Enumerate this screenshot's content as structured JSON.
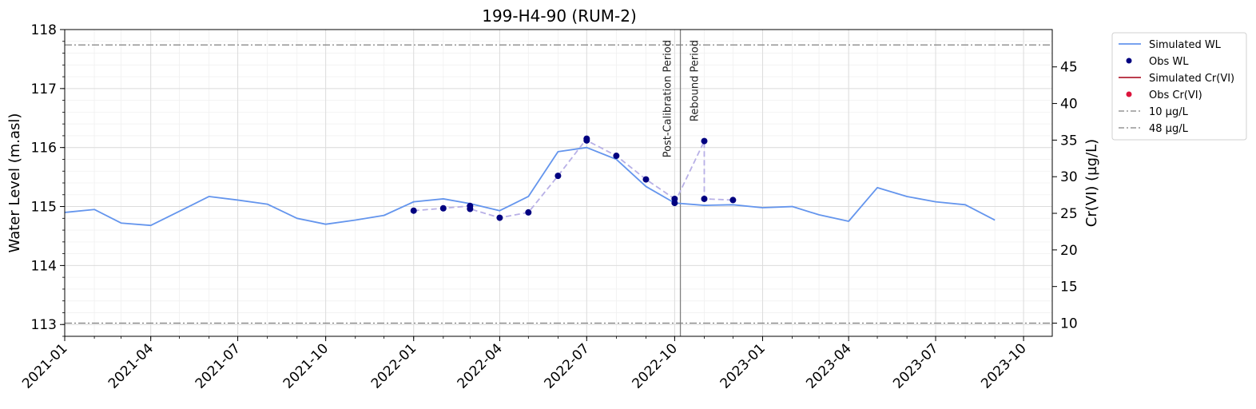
{
  "chart_data": {
    "type": "line",
    "title": "199-H4-90 (RUM-2)",
    "ylabel_left": "Water Level (m.asl)",
    "ylabel_right": "Cr(VI) (µg/L)",
    "xlim": [
      "2021-01-01",
      "2023-10-31"
    ],
    "ylim_left": [
      112.8,
      118.0
    ],
    "ylim_right": [
      8.2,
      50.1
    ],
    "x_ticks": [
      "2021-01",
      "2021-04",
      "2021-07",
      "2021-10",
      "2022-01",
      "2022-04",
      "2022-07",
      "2022-10",
      "2023-01",
      "2023-04",
      "2023-07",
      "2023-10"
    ],
    "y_ticks_left": [
      113,
      114,
      115,
      116,
      117,
      118
    ],
    "y_ticks_right": [
      10,
      15,
      20,
      25,
      30,
      35,
      40,
      45
    ],
    "grid": true,
    "legend_position": "outside-right",
    "series": [
      {
        "name": "Simulated WL",
        "kind": "line",
        "axis": "left",
        "color": "#6495ED",
        "points": [
          {
            "x": "2021-01-01",
            "y": 114.9
          },
          {
            "x": "2021-02-01",
            "y": 114.95
          },
          {
            "x": "2021-03-01",
            "y": 114.72
          },
          {
            "x": "2021-04-01",
            "y": 114.68
          },
          {
            "x": "2021-05-01",
            "y": 114.92
          },
          {
            "x": "2021-06-01",
            "y": 115.17
          },
          {
            "x": "2021-07-01",
            "y": 115.11
          },
          {
            "x": "2021-08-01",
            "y": 115.04
          },
          {
            "x": "2021-09-01",
            "y": 114.8
          },
          {
            "x": "2021-10-01",
            "y": 114.7
          },
          {
            "x": "2021-11-01",
            "y": 114.77
          },
          {
            "x": "2021-12-01",
            "y": 114.85
          },
          {
            "x": "2022-01-01",
            "y": 115.08
          },
          {
            "x": "2022-02-01",
            "y": 115.13
          },
          {
            "x": "2022-03-01",
            "y": 115.05
          },
          {
            "x": "2022-04-01",
            "y": 114.93
          },
          {
            "x": "2022-05-01",
            "y": 115.17
          },
          {
            "x": "2022-06-01",
            "y": 115.93
          },
          {
            "x": "2022-07-01",
            "y": 116.0
          },
          {
            "x": "2022-08-01",
            "y": 115.8
          },
          {
            "x": "2022-09-01",
            "y": 115.34
          },
          {
            "x": "2022-10-01",
            "y": 115.06
          },
          {
            "x": "2022-11-01",
            "y": 115.02
          },
          {
            "x": "2022-12-01",
            "y": 115.03
          },
          {
            "x": "2023-01-01",
            "y": 114.98
          },
          {
            "x": "2023-02-01",
            "y": 115.0
          },
          {
            "x": "2023-03-01",
            "y": 114.86
          },
          {
            "x": "2023-04-01",
            "y": 114.75
          },
          {
            "x": "2023-05-01",
            "y": 115.32
          },
          {
            "x": "2023-06-01",
            "y": 115.17
          },
          {
            "x": "2023-07-01",
            "y": 115.08
          },
          {
            "x": "2023-08-01",
            "y": 115.03
          },
          {
            "x": "2023-09-01",
            "y": 114.77
          }
        ]
      },
      {
        "name": "Obs WL",
        "kind": "scatter",
        "axis": "left",
        "color": "#000080",
        "connector_color": "#B8B0E6",
        "points": [
          {
            "x": "2022-01-01",
            "y": 114.93
          },
          {
            "x": "2022-02-01",
            "y": 114.97
          },
          {
            "x": "2022-03-01",
            "y": 115.01
          },
          {
            "x": "2022-03-01",
            "y": 114.96
          },
          {
            "x": "2022-04-01",
            "y": 114.81
          },
          {
            "x": "2022-05-01",
            "y": 114.9
          },
          {
            "x": "2022-06-01",
            "y": 115.52
          },
          {
            "x": "2022-07-01",
            "y": 116.15
          },
          {
            "x": "2022-07-01",
            "y": 116.12
          },
          {
            "x": "2022-08-01",
            "y": 115.86
          },
          {
            "x": "2022-09-01",
            "y": 115.46
          },
          {
            "x": "2022-10-01",
            "y": 115.13
          },
          {
            "x": "2022-10-01",
            "y": 115.06
          },
          {
            "x": "2022-11-01",
            "y": 116.11
          },
          {
            "x": "2022-11-01",
            "y": 115.13
          },
          {
            "x": "2022-12-01",
            "y": 115.11
          }
        ]
      },
      {
        "name": "Simulated Cr(VI)",
        "kind": "line",
        "axis": "right",
        "color": "#B22234",
        "points": []
      },
      {
        "name": "Obs Cr(VI)",
        "kind": "scatter",
        "axis": "right",
        "color": "#DC143C",
        "points": []
      },
      {
        "name": "10 µg/L",
        "kind": "hline",
        "axis": "right",
        "color": "#808080",
        "value": 10
      },
      {
        "name": "48 µg/L",
        "kind": "hline",
        "axis": "right",
        "color": "#808080",
        "value": 48
      }
    ],
    "vline": {
      "x": "2022-10-07",
      "color": "#808080"
    },
    "annotations": [
      {
        "text": "Post-Calibration Period",
        "side": "left"
      },
      {
        "text": "Rebound Period",
        "side": "right"
      }
    ]
  }
}
